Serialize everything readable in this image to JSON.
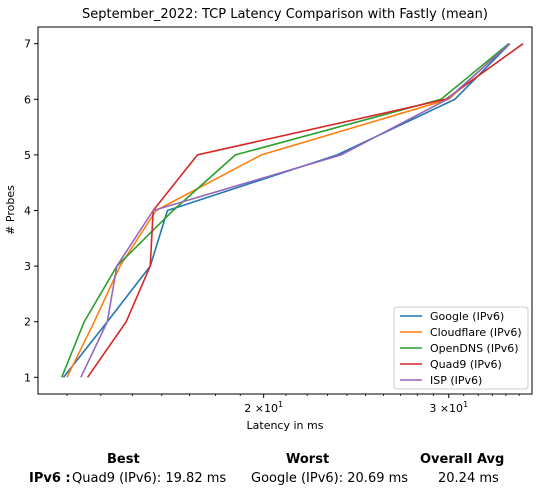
{
  "chart_data": {
    "type": "line",
    "title": "September_2022: TCP Latency Comparison with Fastly (mean)",
    "xlabel": "Latency in ms",
    "ylabel": "# Probes",
    "xscale": "log",
    "xlim": [
      12.2,
      36.0
    ],
    "ylim": [
      0.7,
      7.3
    ],
    "x_ticks": [
      {
        "value": 20,
        "base": "2",
        "mult": "×10",
        "exp": "1"
      },
      {
        "value": 30,
        "base": "3",
        "mult": "×10",
        "exp": "1"
      }
    ],
    "y_ticks": [
      1,
      2,
      3,
      4,
      5,
      6,
      7
    ],
    "grid": false,
    "legend_position": "lower-right",
    "series": [
      {
        "name": "Google (IPv6)",
        "color": "#1f77b4",
        "points": [
          [
            12.9,
            1
          ],
          [
            14.2,
            2
          ],
          [
            15.6,
            3
          ],
          [
            16.2,
            4
          ],
          [
            23.5,
            5
          ],
          [
            30.4,
            6
          ],
          [
            34.3,
            7
          ]
        ]
      },
      {
        "name": "Cloudflare (IPv6)",
        "color": "#ff7f0e",
        "points": [
          [
            13.0,
            1
          ],
          [
            13.8,
            2
          ],
          [
            14.6,
            3
          ],
          [
            15.8,
            4
          ],
          [
            19.9,
            5
          ],
          [
            30.0,
            6
          ],
          [
            34.2,
            7
          ]
        ]
      },
      {
        "name": "OpenDNS (IPv6)",
        "color": "#2ca02c",
        "points": [
          [
            12.85,
            1
          ],
          [
            13.5,
            2
          ],
          [
            14.5,
            3
          ],
          [
            16.4,
            4
          ],
          [
            18.8,
            5
          ],
          [
            29.5,
            6
          ],
          [
            34.2,
            7
          ]
        ]
      },
      {
        "name": "Quad9 (IPv6)",
        "color": "#d62728",
        "points": [
          [
            13.6,
            1
          ],
          [
            14.8,
            2
          ],
          [
            15.6,
            3
          ],
          [
            15.7,
            4
          ],
          [
            17.3,
            5
          ],
          [
            29.8,
            6
          ],
          [
            35.3,
            7
          ]
        ]
      },
      {
        "name": "ISP (IPv6)",
        "color": "#9467bd",
        "points": [
          [
            13.4,
            1
          ],
          [
            14.2,
            2
          ],
          [
            14.5,
            3
          ],
          [
            15.7,
            4
          ],
          [
            23.7,
            5
          ],
          [
            29.9,
            6
          ],
          [
            34.3,
            7
          ]
        ]
      }
    ]
  },
  "summary": {
    "best_header": "Best",
    "worst_header": "Worst",
    "avg_header": "Overall Avg",
    "row_label": "IPv6 :",
    "best_value": "Quad9 (IPv6): 19.82 ms",
    "worst_value": "Google (IPv6): 20.69 ms",
    "avg_value": "20.24 ms"
  }
}
